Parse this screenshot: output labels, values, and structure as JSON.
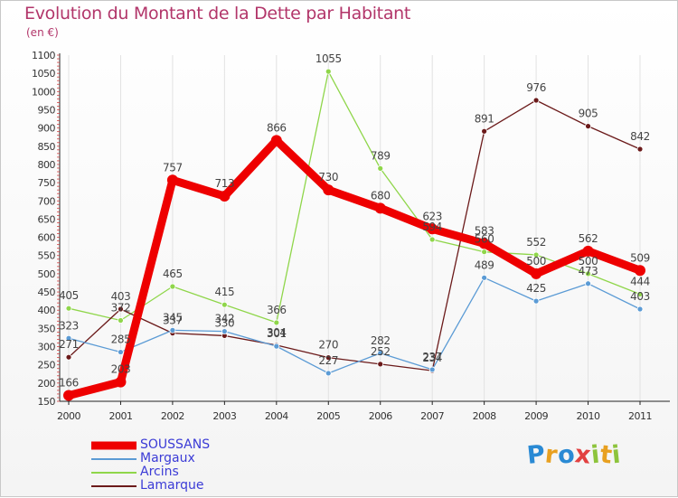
{
  "title": "Evolution du Montant de la Dette par Habitant",
  "unit": "(en €)",
  "chart_data": {
    "type": "line",
    "x": [
      "2000",
      "2001",
      "2002",
      "2003",
      "2004",
      "2005",
      "2006",
      "2007",
      "2008",
      "2009",
      "2010",
      "2011"
    ],
    "ylim": [
      150,
      1100
    ],
    "yticks": [
      150,
      200,
      250,
      300,
      350,
      400,
      450,
      500,
      550,
      600,
      650,
      700,
      750,
      800,
      850,
      900,
      950,
      1000,
      1050,
      1100
    ],
    "grid": "vertical",
    "legend_position": "bottom-left",
    "series": [
      {
        "name": "SOUSSANS",
        "color": "#ee0000",
        "values": [
          166,
          203,
          757,
          713,
          866,
          730,
          680,
          623,
          583,
          500,
          562,
          509
        ]
      },
      {
        "name": "Margaux",
        "color": "#5b9bd5",
        "values": [
          323,
          285,
          345,
          342,
          301,
          227,
          282,
          237,
          489,
          425,
          473,
          403
        ]
      },
      {
        "name": "Arcins",
        "color": "#8fd64a",
        "values": [
          405,
          372,
          465,
          415,
          366,
          1055,
          789,
          594,
          560,
          552,
          500,
          444
        ]
      },
      {
        "name": "Lamarque",
        "color": "#6b1a1a",
        "values": [
          271,
          403,
          337,
          330,
          304,
          270,
          252,
          234,
          891,
          976,
          905,
          842
        ]
      }
    ]
  },
  "logo": {
    "letters": [
      "P",
      "r",
      "o",
      "x",
      "i",
      "t",
      "i"
    ]
  }
}
